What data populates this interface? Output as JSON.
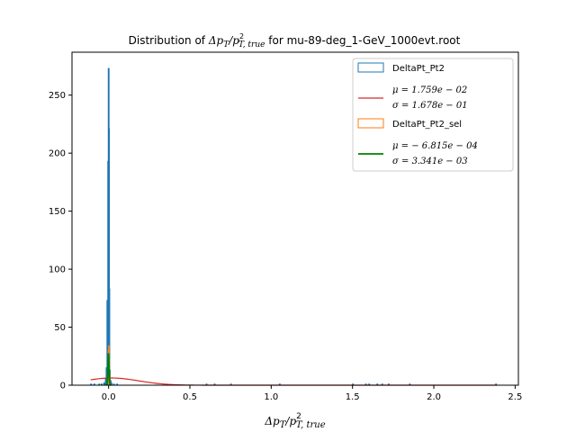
{
  "chart_data": {
    "type": "histogram",
    "title": "Distribution of Δp_T/p_{T,true}^2 for mu-89-deg_1-GeV_1000evt.root",
    "title_parts": {
      "prefix": "Distribution of ",
      "math": "Δp",
      "sub1": "T",
      "slash": "/p",
      "sup": "2",
      "sub2": "T, true",
      "suffix": " for mu-89-deg_1-GeV_1000evt.root"
    },
    "xlabel_parts": {
      "math": "Δp",
      "sub1": "T",
      "slash": "/p",
      "sup": "2",
      "sub2": "T, true"
    },
    "xlim": [
      -0.225,
      2.52
    ],
    "ylim": [
      0,
      287
    ],
    "xticks": [
      0.0,
      0.5,
      1.0,
      1.5,
      2.0,
      2.5
    ],
    "xtick_labels": [
      "0.0",
      "0.5",
      "1.0",
      "1.5",
      "2.0",
      "2.5"
    ],
    "yticks": [
      0,
      50,
      100,
      150,
      200,
      250
    ],
    "ytick_labels": [
      "0",
      "50",
      "100",
      "150",
      "200",
      "250"
    ],
    "legend": {
      "placement": "top-right",
      "entries": [
        {
          "label": "DeltaPt_Pt2",
          "kind": "patch",
          "color": "#1f77b4"
        },
        {
          "line1": "μ = 1.759e − 02",
          "line2": "σ = 1.678e − 01",
          "kind": "line",
          "color": "#d62728"
        },
        {
          "label": "DeltaPt_Pt2_sel",
          "kind": "patch",
          "color": "#ff7f0e"
        },
        {
          "line1": "μ = − 6.815e − 04",
          "line2": "σ = 3.341e − 03",
          "kind": "line",
          "color": "#008000"
        }
      ]
    },
    "series": [
      {
        "name": "DeltaPt_Pt2",
        "kind": "step-histogram",
        "color": "#1f77b4",
        "bins": [
          [
            -0.11,
            -0.105,
            1
          ],
          [
            -0.09,
            -0.085,
            1
          ],
          [
            -0.06,
            -0.055,
            1
          ],
          [
            -0.045,
            -0.04,
            1
          ],
          [
            -0.03,
            -0.025,
            2
          ],
          [
            -0.02,
            -0.015,
            6
          ],
          [
            -0.015,
            -0.01,
            15
          ],
          [
            -0.01,
            -0.005,
            73
          ],
          [
            -0.005,
            -0.002,
            193
          ],
          [
            -0.002,
            0.0,
            273
          ],
          [
            0.0,
            0.002,
            221
          ],
          [
            0.002,
            0.005,
            83
          ],
          [
            0.005,
            0.01,
            13
          ],
          [
            0.01,
            0.015,
            4
          ],
          [
            0.015,
            0.02,
            2
          ],
          [
            0.03,
            0.035,
            1
          ],
          [
            0.05,
            0.055,
            1
          ],
          [
            0.6,
            0.605,
            1
          ],
          [
            0.65,
            0.655,
            1
          ],
          [
            0.75,
            0.755,
            1
          ],
          [
            1.05,
            1.055,
            1
          ],
          [
            1.5,
            1.505,
            1
          ],
          [
            1.58,
            1.585,
            1
          ],
          [
            1.6,
            1.605,
            1
          ],
          [
            1.65,
            1.655,
            1
          ],
          [
            1.68,
            1.685,
            1
          ],
          [
            1.72,
            1.725,
            1
          ],
          [
            1.85,
            1.855,
            1
          ],
          [
            2.38,
            2.385,
            1
          ]
        ]
      },
      {
        "name": "DeltaPt_Pt2_sel",
        "kind": "step-histogram",
        "color": "#ff7f0e",
        "bins": [
          [
            -0.008,
            -0.005,
            4
          ],
          [
            -0.005,
            -0.003,
            12
          ],
          [
            -0.003,
            -0.001,
            30
          ],
          [
            -0.001,
            0.001,
            34
          ],
          [
            0.001,
            0.003,
            22
          ],
          [
            0.003,
            0.005,
            9
          ],
          [
            0.005,
            0.008,
            2
          ]
        ]
      },
      {
        "name": "gauss-all",
        "kind": "gaussian",
        "color": "#d62728",
        "mu": 0.01759,
        "sigma": 0.1678,
        "amplitude": 6.2,
        "range": [
          -0.11,
          2.39
        ]
      },
      {
        "name": "gauss-sel",
        "kind": "gaussian",
        "color": "#008000",
        "mu": -0.0006815,
        "sigma": 0.003341,
        "amplitude": 27,
        "range": [
          -0.012,
          0.012
        ]
      }
    ]
  }
}
